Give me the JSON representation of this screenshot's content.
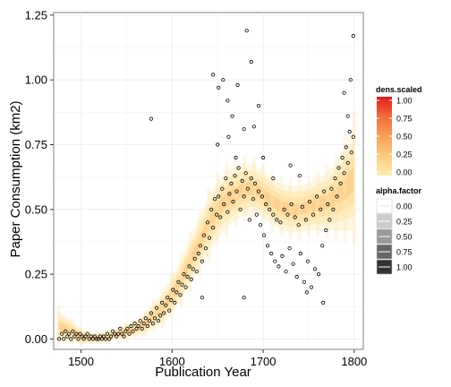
{
  "chart_data": {
    "type": "scatter",
    "title": "",
    "xlabel": "Publication Year",
    "ylabel": "Paper Consumption (km2)",
    "xlim": [
      1470,
      1810
    ],
    "ylim": [
      -0.04,
      1.26
    ],
    "x_ticks": [
      1500,
      1600,
      1700,
      1800
    ],
    "y_ticks": [
      0.0,
      0.25,
      0.5,
      0.75,
      1.0,
      1.25
    ],
    "x_tick_labels": [
      "1500",
      "1600",
      "1700",
      "1800"
    ],
    "y_tick_labels": [
      "0.00",
      "0.25",
      "0.50",
      "0.75",
      "1.00",
      "1.25"
    ],
    "grid": true,
    "band": {
      "description_free": true,
      "x": [
        1475,
        1490,
        1500,
        1510,
        1520,
        1530,
        1540,
        1550,
        1560,
        1570,
        1580,
        1590,
        1600,
        1610,
        1620,
        1630,
        1640,
        1650,
        1660,
        1670,
        1680,
        1690,
        1700,
        1710,
        1720,
        1730,
        1740,
        1750,
        1760,
        1770,
        1780,
        1790,
        1800
      ],
      "center": [
        0.05,
        0.03,
        0.01,
        0.005,
        0.005,
        0.01,
        0.02,
        0.03,
        0.04,
        0.06,
        0.09,
        0.12,
        0.17,
        0.23,
        0.3,
        0.37,
        0.44,
        0.5,
        0.54,
        0.56,
        0.58,
        0.58,
        0.56,
        0.53,
        0.51,
        0.5,
        0.5,
        0.51,
        0.52,
        0.53,
        0.55,
        0.58,
        0.62
      ],
      "half_width": [
        0.06,
        0.04,
        0.03,
        0.02,
        0.02,
        0.02,
        0.02,
        0.03,
        0.03,
        0.04,
        0.05,
        0.06,
        0.07,
        0.08,
        0.09,
        0.1,
        0.11,
        0.11,
        0.11,
        0.1,
        0.1,
        0.09,
        0.09,
        0.09,
        0.09,
        0.09,
        0.09,
        0.09,
        0.1,
        0.11,
        0.13,
        0.16,
        0.2
      ]
    },
    "points": [
      [
        1476,
        0.0
      ],
      [
        1479,
        0.02
      ],
      [
        1481,
        0.0
      ],
      [
        1483,
        0.03
      ],
      [
        1485,
        0.01
      ],
      [
        1487,
        0.02
      ],
      [
        1489,
        0.0
      ],
      [
        1491,
        0.03
      ],
      [
        1493,
        0.01
      ],
      [
        1495,
        0.02
      ],
      [
        1497,
        0.0
      ],
      [
        1499,
        0.02
      ],
      [
        1501,
        0.01
      ],
      [
        1503,
        0.0
      ],
      [
        1505,
        0.01
      ],
      [
        1507,
        0.02
      ],
      [
        1509,
        0.0
      ],
      [
        1511,
        0.01
      ],
      [
        1513,
        0.0
      ],
      [
        1515,
        0.01
      ],
      [
        1517,
        0.0
      ],
      [
        1519,
        0.0
      ],
      [
        1521,
        0.01
      ],
      [
        1523,
        0.0
      ],
      [
        1525,
        0.01
      ],
      [
        1527,
        0.0
      ],
      [
        1529,
        0.02
      ],
      [
        1531,
        0.0
      ],
      [
        1533,
        0.01
      ],
      [
        1535,
        0.03
      ],
      [
        1537,
        0.02
      ],
      [
        1539,
        0.01
      ],
      [
        1541,
        0.02
      ],
      [
        1543,
        0.04
      ],
      [
        1545,
        0.02
      ],
      [
        1547,
        0.01
      ],
      [
        1549,
        0.03
      ],
      [
        1551,
        0.04
      ],
      [
        1553,
        0.02
      ],
      [
        1555,
        0.05
      ],
      [
        1557,
        0.03
      ],
      [
        1559,
        0.06
      ],
      [
        1561,
        0.04
      ],
      [
        1563,
        0.05
      ],
      [
        1565,
        0.07
      ],
      [
        1567,
        0.04
      ],
      [
        1569,
        0.06
      ],
      [
        1571,
        0.08
      ],
      [
        1573,
        0.05
      ],
      [
        1575,
        0.07
      ],
      [
        1577,
        0.1
      ],
      [
        1579,
        0.06
      ],
      [
        1581,
        0.08
      ],
      [
        1583,
        0.12
      ],
      [
        1585,
        0.07
      ],
      [
        1587,
        0.09
      ],
      [
        1589,
        0.14
      ],
      [
        1591,
        0.1
      ],
      [
        1593,
        0.13
      ],
      [
        1595,
        0.16
      ],
      [
        1597,
        0.11
      ],
      [
        1599,
        0.15
      ],
      [
        1601,
        0.19
      ],
      [
        1603,
        0.14
      ],
      [
        1605,
        0.18
      ],
      [
        1607,
        0.22
      ],
      [
        1609,
        0.17
      ],
      [
        1611,
        0.21
      ],
      [
        1613,
        0.25
      ],
      [
        1615,
        0.2
      ],
      [
        1617,
        0.24
      ],
      [
        1619,
        0.28
      ],
      [
        1621,
        0.23
      ],
      [
        1623,
        0.27
      ],
      [
        1625,
        0.31
      ],
      [
        1627,
        0.26
      ],
      [
        1629,
        0.33
      ],
      [
        1631,
        0.36
      ],
      [
        1633,
        0.3
      ],
      [
        1635,
        0.4
      ],
      [
        1637,
        0.35
      ],
      [
        1639,
        0.45
      ],
      [
        1641,
        0.39
      ],
      [
        1643,
        0.5
      ],
      [
        1645,
        0.43
      ],
      [
        1647,
        0.54
      ],
      [
        1649,
        0.48
      ],
      [
        1651,
        0.55
      ],
      [
        1653,
        0.47
      ],
      [
        1655,
        0.58
      ],
      [
        1657,
        0.52
      ],
      [
        1659,
        0.62
      ],
      [
        1661,
        0.49
      ],
      [
        1663,
        0.56
      ],
      [
        1665,
        0.6
      ],
      [
        1667,
        0.53
      ],
      [
        1669,
        0.63
      ],
      [
        1671,
        0.57
      ],
      [
        1673,
        0.66
      ],
      [
        1675,
        0.5
      ],
      [
        1677,
        0.61
      ],
      [
        1679,
        0.55
      ],
      [
        1681,
        0.64
      ],
      [
        1683,
        0.58
      ],
      [
        1685,
        0.46
      ],
      [
        1687,
        0.62
      ],
      [
        1689,
        0.54
      ],
      [
        1691,
        0.6
      ],
      [
        1693,
        0.48
      ],
      [
        1695,
        0.57
      ],
      [
        1697,
        0.44
      ],
      [
        1699,
        0.55
      ],
      [
        1701,
        0.4
      ],
      [
        1703,
        0.52
      ],
      [
        1705,
        0.36
      ],
      [
        1707,
        0.5
      ],
      [
        1709,
        0.33
      ],
      [
        1711,
        0.48
      ],
      [
        1713,
        0.3
      ],
      [
        1715,
        0.46
      ],
      [
        1717,
        0.28
      ],
      [
        1719,
        0.45
      ],
      [
        1721,
        0.32
      ],
      [
        1723,
        0.5
      ],
      [
        1725,
        0.26
      ],
      [
        1727,
        0.48
      ],
      [
        1729,
        0.35
      ],
      [
        1731,
        0.52
      ],
      [
        1733,
        0.29
      ],
      [
        1735,
        0.47
      ],
      [
        1737,
        0.24
      ],
      [
        1739,
        0.44
      ],
      [
        1741,
        0.33
      ],
      [
        1743,
        0.51
      ],
      [
        1745,
        0.22
      ],
      [
        1747,
        0.46
      ],
      [
        1749,
        0.3
      ],
      [
        1751,
        0.53
      ],
      [
        1753,
        0.2
      ],
      [
        1755,
        0.48
      ],
      [
        1757,
        0.27
      ],
      [
        1759,
        0.55
      ],
      [
        1761,
        0.25
      ],
      [
        1763,
        0.5
      ],
      [
        1765,
        0.36
      ],
      [
        1767,
        0.57
      ],
      [
        1769,
        0.42
      ],
      [
        1771,
        0.52
      ],
      [
        1773,
        0.46
      ],
      [
        1775,
        0.58
      ],
      [
        1777,
        0.5
      ],
      [
        1779,
        0.62
      ],
      [
        1781,
        0.55
      ],
      [
        1783,
        0.66
      ],
      [
        1785,
        0.6
      ],
      [
        1787,
        0.7
      ],
      [
        1789,
        0.64
      ],
      [
        1791,
        0.74
      ],
      [
        1793,
        0.68
      ],
      [
        1795,
        0.8
      ],
      [
        1797,
        0.72
      ],
      [
        1799,
        0.78
      ],
      [
        1577,
        0.85
      ],
      [
        1645,
        1.02
      ],
      [
        1651,
        0.97
      ],
      [
        1656,
        1.0
      ],
      [
        1661,
        0.92
      ],
      [
        1666,
        0.86
      ],
      [
        1672,
        0.98
      ],
      [
        1679,
        0.81
      ],
      [
        1682,
        1.19
      ],
      [
        1687,
        1.07
      ],
      [
        1690,
        0.82
      ],
      [
        1695,
        0.9
      ],
      [
        1793,
        0.86
      ],
      [
        1796,
        1.0
      ],
      [
        1799,
        1.17
      ],
      [
        1789,
        0.95
      ],
      [
        1679,
        0.16
      ],
      [
        1633,
        0.16
      ],
      [
        1650,
        0.75
      ],
      [
        1662,
        0.78
      ],
      [
        1670,
        0.7
      ],
      [
        1700,
        0.7
      ],
      [
        1740,
        0.63
      ],
      [
        1748,
        0.18
      ],
      [
        1766,
        0.14
      ],
      [
        1730,
        0.67
      ],
      [
        1711,
        0.62
      ]
    ]
  },
  "legend_fill": {
    "title": "dens.scaled",
    "labels": [
      "1.00",
      "0.75",
      "0.50",
      "0.25",
      "0.00"
    ],
    "colors": [
      "#E31A1C",
      "#F26B3A",
      "#F9A05A",
      "#FCCB7E",
      "#FEEFB0"
    ]
  },
  "legend_alpha": {
    "title": "alpha.factor",
    "labels": [
      "0.00",
      "0.25",
      "0.50",
      "0.75",
      "1.00"
    ],
    "shades": [
      "#FFFFFF",
      "#CCCCCC",
      "#999999",
      "#666666",
      "#333333"
    ]
  }
}
